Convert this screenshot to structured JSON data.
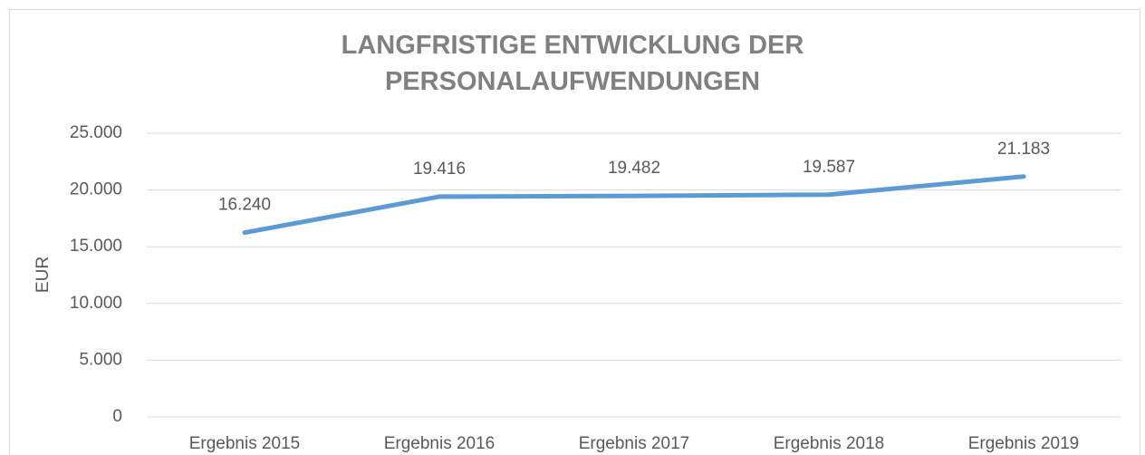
{
  "chart_data": {
    "type": "line",
    "title": "LANGFRISTIGE ENTWICKLUNG DER PERSONALAUFWENDUNGEN",
    "y_label": "EUR",
    "categories": [
      "Ergebnis 2015",
      "Ergebnis 2016",
      "Ergebnis 2017",
      "Ergebnis 2018",
      "Ergebnis 2019"
    ],
    "series": [
      {
        "name": "Personalaufwendungen",
        "color": "#5b9bd5",
        "values": [
          16240,
          19416,
          19482,
          19587,
          21183
        ],
        "value_labels": [
          "16.240",
          "19.416",
          "19.482",
          "19.587",
          "21.183"
        ]
      }
    ],
    "ylim": [
      0,
      25000
    ],
    "yticks": [
      0,
      {
        "value": 5000,
        "label": "5.000"
      },
      {
        "value": 10000,
        "label": "10.000"
      },
      {
        "value": 15000,
        "label": "15.000"
      },
      {
        "value": 20000,
        "label": "20.000"
      },
      {
        "value": 25000,
        "label": "25.000"
      }
    ],
    "grid": true
  }
}
